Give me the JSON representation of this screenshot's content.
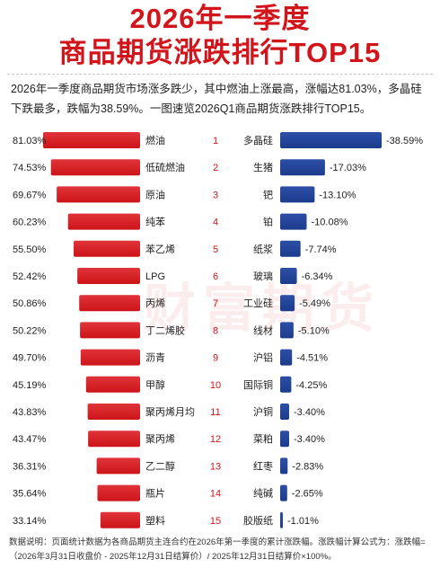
{
  "header": {
    "title_line1": "2026年一季度",
    "title_line2": "商品期货涨跌排行TOP15",
    "intro": "2026年一季度商品期货市场涨多跌少，其中燃油上涨最高，涨幅达81.03%，多晶硅下跌最多，跌幅为38.59%。一图速览2026Q1商品期货涨跌排行TOP15。"
  },
  "watermark": "财富期货",
  "footnote": "数据说明：页面统计数据为各商品期货主连合约在2026年第一季度的累计涨跌幅。涨跌幅计算公式为：涨跌幅=（2026年3月31日收盘价 - 2025年12月31日结算价）/ 2025年12月31日结算价×100%。",
  "colors": {
    "gain": "#cc1419",
    "loss": "#1c3b8c",
    "rank": "#d2141b"
  },
  "chart_data": {
    "type": "bar",
    "ranks": [
      "1",
      "2",
      "3",
      "4",
      "5",
      "6",
      "7",
      "8",
      "9",
      "10",
      "11",
      "12",
      "13",
      "14",
      "15"
    ],
    "gainers": {
      "categories": [
        "燃油",
        "低硫燃油",
        "原油",
        "纯苯",
        "苯乙烯",
        "LPG",
        "丙烯",
        "丁二烯胶",
        "沥青",
        "甲醇",
        "聚丙烯月均",
        "聚丙烯",
        "乙二醇",
        "瓶片",
        "塑料"
      ],
      "values": [
        81.03,
        74.53,
        69.67,
        60.23,
        55.5,
        52.42,
        50.86,
        50.22,
        49.7,
        45.19,
        43.83,
        43.47,
        36.31,
        35.64,
        33.14
      ],
      "labels": [
        "81.03%",
        "74.53%",
        "69.67%",
        "60.23%",
        "55.50%",
        "52.42%",
        "50.86%",
        "50.22%",
        "49.70%",
        "45.19%",
        "43.83%",
        "43.47%",
        "36.31%",
        "35.64%",
        "33.14%"
      ]
    },
    "losers": {
      "categories": [
        "多晶硅",
        "生猪",
        "钯",
        "铂",
        "纸浆",
        "玻璃",
        "工业硅",
        "线材",
        "沪铝",
        "国际铜",
        "沪铜",
        "菜粕",
        "红枣",
        "纯碱",
        "胶版纸"
      ],
      "values": [
        -38.59,
        -17.03,
        -13.1,
        -10.08,
        -7.74,
        -6.34,
        -5.49,
        -5.1,
        -4.51,
        -4.25,
        -3.4,
        -3.4,
        -2.83,
        -2.65,
        -1.01
      ],
      "labels": [
        "-38.59%",
        "-17.03%",
        "-13.10%",
        "-10.08%",
        "-7.74%",
        "-6.34%",
        "-5.49%",
        "-5.10%",
        "-4.51%",
        "-4.25%",
        "-3.40%",
        "-3.40%",
        "-2.83%",
        "-2.65%",
        "-1.01%"
      ]
    }
  }
}
